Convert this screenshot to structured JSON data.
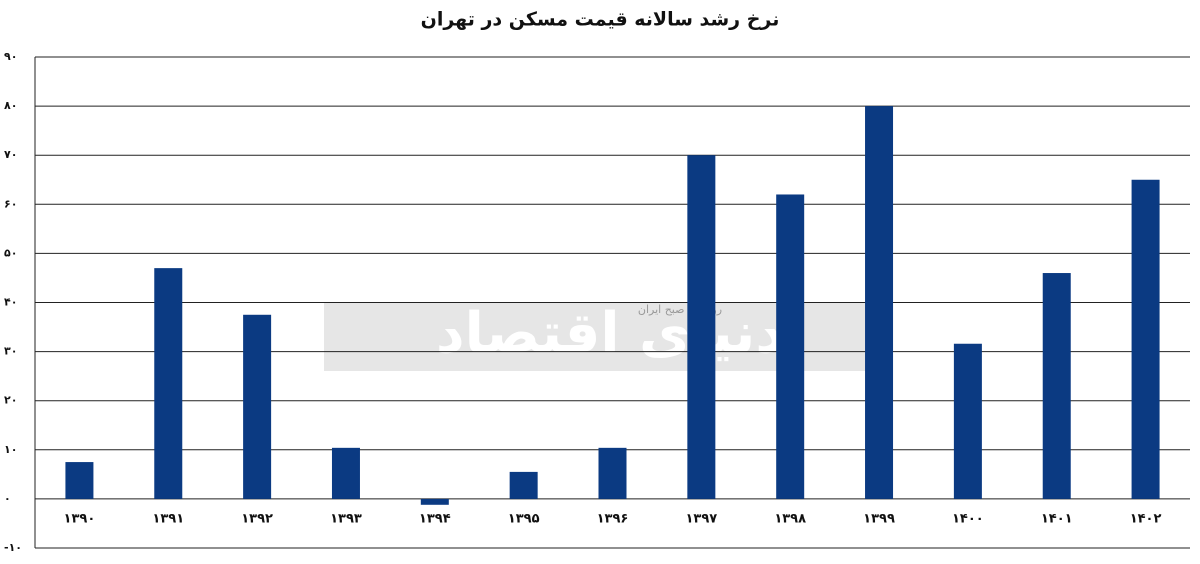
{
  "chart_data": {
    "type": "bar",
    "title": "نرخ رشد سالانه قیمت مسکن در تهران",
    "watermark": "دنیای اقتصاد",
    "watermark_subtitle": "روزنامه صبح ایران",
    "categories": [
      "۱۳۹۰",
      "۱۳۹۱",
      "۱۳۹۲",
      "۱۳۹۳",
      "۱۳۹۴",
      "۱۳۹۵",
      "۱۳۹۶",
      "۱۳۹۷",
      "۱۳۹۸",
      "۱۳۹۹",
      "۱۴۰۰",
      "۱۴۰۱",
      "۱۴۰۲"
    ],
    "values": [
      7.5,
      47,
      37.5,
      10.4,
      -1.2,
      5.5,
      10.4,
      70,
      62,
      80,
      31.6,
      46,
      65
    ],
    "color": "#0b3a82",
    "ylim": [
      -10,
      90
    ],
    "yticks": [
      {
        "value": -10,
        "label": "-۱۰"
      },
      {
        "value": 0,
        "label": "۰"
      },
      {
        "value": 10,
        "label": "۱۰"
      },
      {
        "value": 20,
        "label": "۲۰"
      },
      {
        "value": 30,
        "label": "۳۰"
      },
      {
        "value": 40,
        "label": "۴۰"
      },
      {
        "value": 50,
        "label": "۵۰"
      },
      {
        "value": 60,
        "label": "۶۰"
      },
      {
        "value": 70,
        "label": "۷۰"
      },
      {
        "value": 80,
        "label": "۸۰"
      },
      {
        "value": 90,
        "label": "۹۰"
      }
    ],
    "grid": true
  }
}
